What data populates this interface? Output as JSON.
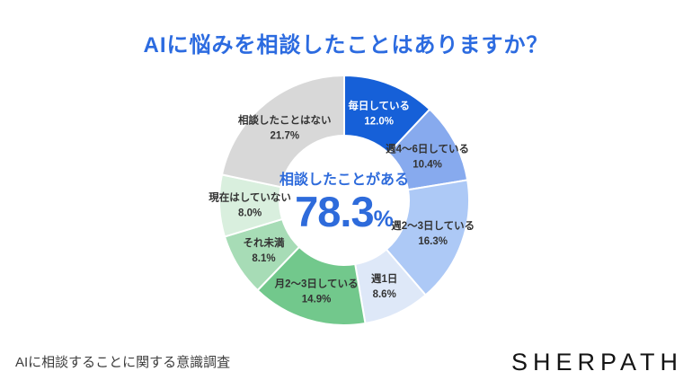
{
  "title": "AIに悩みを相談したことはありますか？",
  "center": {
    "label": "相談したことがある",
    "value": "78.3",
    "unit": "%"
  },
  "footer": {
    "source": "AIに相談することに関する意識調査",
    "logo": "SHERPATH"
  },
  "colors": {
    "title_blue": "#2c6be0",
    "center_blue": "#2e6bdb",
    "source_gray": "#3d3d3d",
    "logo_black": "#141414",
    "background": "#ffffff"
  },
  "chart_data": {
    "type": "pie",
    "donut": true,
    "units": "%",
    "start_angle_deg": 0,
    "direction": "clockwise",
    "title": "AIに悩みを相談したことはありますか？",
    "center_label": "相談したことがある",
    "center_value": "78.3%",
    "segments": [
      {
        "label": "毎日している",
        "value": 12.0,
        "display": "12.0%",
        "color": "#1660d8",
        "text_color": "#ffffff"
      },
      {
        "label": "週4〜6日している",
        "value": 10.4,
        "display": "10.4%",
        "color": "#87aaee",
        "text_color": "#333333"
      },
      {
        "label": "週2〜3日している",
        "value": 16.3,
        "display": "16.3%",
        "color": "#adc9f6",
        "text_color": "#333333"
      },
      {
        "label": "週1日",
        "value": 8.6,
        "display": "8.6%",
        "color": "#dee8f8",
        "text_color": "#333333"
      },
      {
        "label": "月2〜3日している",
        "value": 14.9,
        "display": "14.9%",
        "color": "#72c88c",
        "text_color": "#333333"
      },
      {
        "label": "それ未満",
        "value": 8.1,
        "display": "8.1%",
        "color": "#a7dcb6",
        "text_color": "#333333"
      },
      {
        "label": "現在はしていない",
        "value": 8.0,
        "display": "8.0%",
        "color": "#d9efde",
        "text_color": "#333333"
      },
      {
        "label": "相談したことはない",
        "value": 21.7,
        "display": "21.7%",
        "color": "#d8d8d8",
        "text_color": "#333333"
      }
    ]
  }
}
